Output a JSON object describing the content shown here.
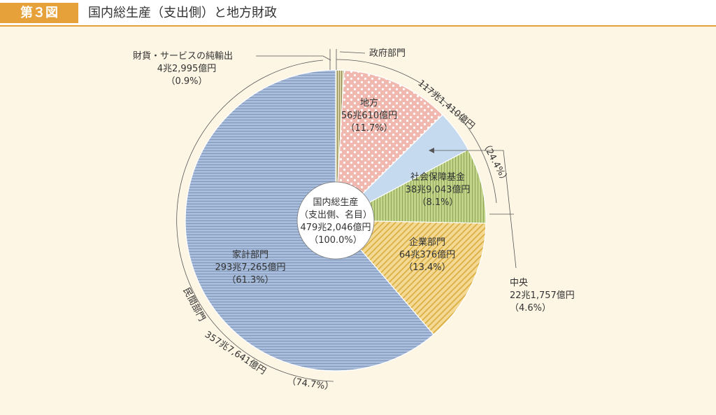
{
  "figure": {
    "badge": "第３図",
    "title": "国内総生産（支出側）と地方財政"
  },
  "colors": {
    "household": "#a7bddb",
    "local": "#f0b8ae",
    "central": "#c5d9ef",
    "social": "#c1d48a",
    "corporate": "#eecf78",
    "net_exports": "#c8c28a"
  },
  "chart_data": {
    "type": "pie",
    "title": "",
    "center": {
      "line1": "国内総生産",
      "line2": "（支出側、名目）",
      "value": "479兆2,046億円",
      "percent": "（100.0%）"
    },
    "slices": [
      {
        "key": "net_exports",
        "name": "財貨・サービスの純輸出",
        "value_label": "4兆2,995億円",
        "percent": 0.9,
        "percent_label": "（0.9%）"
      },
      {
        "key": "local",
        "name": "地方",
        "value_label": "56兆610億円",
        "percent": 11.7,
        "percent_label": "（11.7%）"
      },
      {
        "key": "central",
        "name": "中央",
        "value_label": "22兆1,757億円",
        "percent": 4.6,
        "percent_label": "（4.6%）"
      },
      {
        "key": "social",
        "name": "社会保障基金",
        "value_label": "38兆9,043億円",
        "percent": 8.1,
        "percent_label": "（8.1%）"
      },
      {
        "key": "corporate",
        "name": "企業部門",
        "value_label": "64兆376億円",
        "percent": 13.4,
        "percent_label": "（13.4%）"
      },
      {
        "key": "household",
        "name": "家計部門",
        "value_label": "293兆7,265億円",
        "percent": 61.3,
        "percent_label": "（61.3%）"
      }
    ],
    "groups": {
      "government": {
        "name": "政府部門",
        "value_label": "117兆1,410億円",
        "percent": 24.4,
        "percent_label": "（24.4%）"
      },
      "private": {
        "name": "民間部門",
        "value_label": "357兆7,641億円",
        "percent": 74.7,
        "percent_label": "（74.7%）"
      }
    }
  }
}
